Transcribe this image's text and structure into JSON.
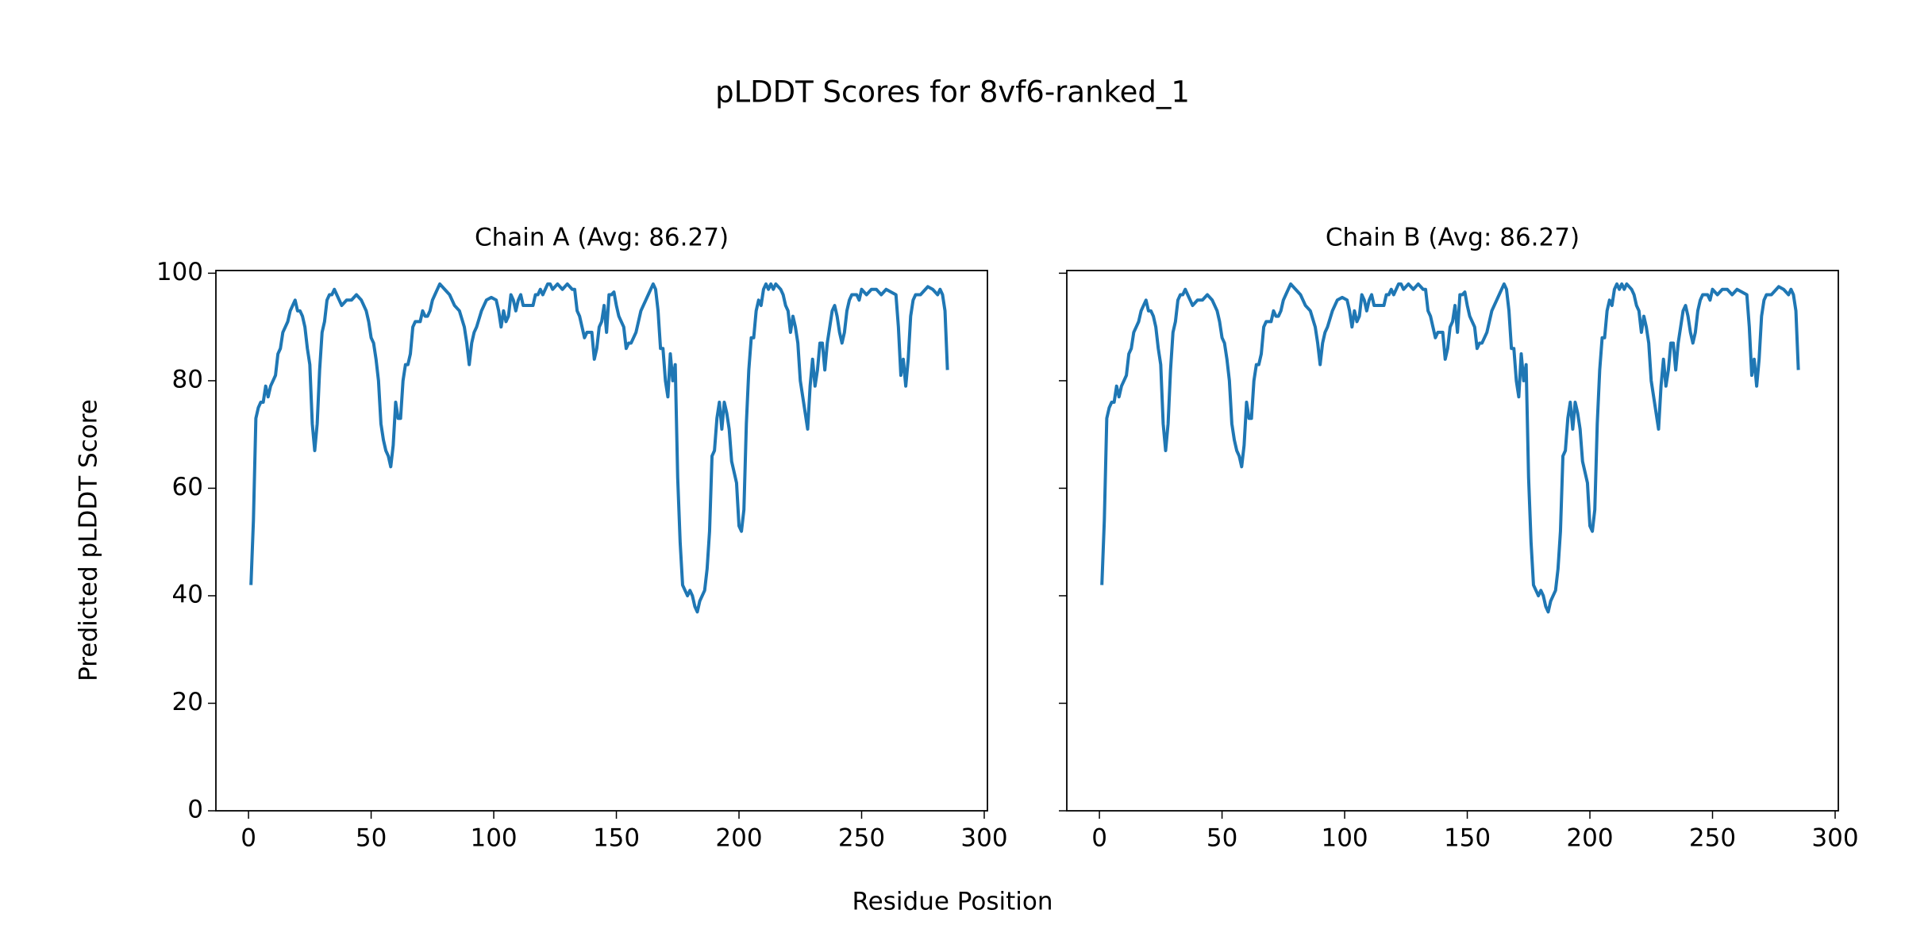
{
  "title": "pLDDT Scores for 8vf6-ranked_1",
  "xlabel": "Residue Position",
  "ylabel": "Predicted pLDDT Score",
  "chart_data": [
    {
      "type": "line",
      "title": "Chain A (Avg: 86.27)",
      "color": "#1f77b4",
      "x": [
        1,
        2,
        3,
        4,
        5,
        6,
        7,
        8,
        9,
        10,
        11,
        12,
        13,
        14,
        15,
        16,
        17,
        18,
        19,
        20,
        21,
        22,
        23,
        24,
        25,
        26,
        27,
        28,
        29,
        30,
        31,
        32,
        33,
        34,
        35,
        36,
        37,
        38,
        39,
        40,
        42,
        44,
        46,
        48,
        49,
        50,
        51,
        52,
        53,
        54,
        55,
        56,
        57,
        58,
        59,
        60,
        61,
        62,
        63,
        64,
        65,
        66,
        67,
        68,
        70,
        71,
        72,
        73,
        74,
        75,
        76,
        77,
        78,
        80,
        82,
        84,
        86,
        88,
        89,
        90,
        91,
        92,
        93,
        95,
        97,
        99,
        101,
        102,
        103,
        104,
        105,
        106,
        107,
        108,
        109,
        110,
        111,
        112,
        114,
        116,
        117,
        118,
        119,
        120,
        121,
        122,
        123,
        124,
        126,
        128,
        130,
        132,
        133,
        134,
        135,
        136,
        137,
        138,
        140,
        141,
        142,
        143,
        144,
        145,
        146,
        147,
        148,
        149,
        150,
        151,
        152,
        153,
        154,
        155,
        156,
        158,
        160,
        162,
        163,
        164,
        165,
        166,
        167,
        168,
        169,
        170,
        171,
        172,
        173,
        174,
        175,
        176,
        177,
        178,
        179,
        180,
        181,
        182,
        183,
        184,
        186,
        187,
        188,
        189,
        190,
        191,
        192,
        193,
        194,
        195,
        196,
        197,
        198,
        199,
        200,
        201,
        202,
        203,
        204,
        205,
        206,
        207,
        208,
        209,
        210,
        211,
        212,
        213,
        214,
        215,
        216,
        217,
        218,
        219,
        220,
        221,
        222,
        223,
        224,
        225,
        226,
        227,
        228,
        229,
        230,
        231,
        232,
        233,
        234,
        235,
        236,
        237,
        238,
        239,
        240,
        241,
        242,
        243,
        244,
        245,
        246,
        248,
        249,
        250,
        252,
        254,
        256,
        258,
        260,
        262,
        264,
        265,
        266,
        267,
        268,
        269,
        270,
        271,
        272,
        274,
        276,
        277,
        279,
        281,
        282,
        283,
        284,
        285
      ],
      "values": [
        42,
        54,
        73,
        75,
        76,
        76,
        79,
        77,
        79,
        80,
        81,
        85,
        86,
        89,
        90,
        91,
        93,
        94,
        95,
        93,
        93,
        92,
        90,
        86,
        83,
        72,
        67,
        72,
        82,
        89,
        91,
        95,
        96,
        96,
        97,
        96,
        95,
        94,
        94.5,
        95,
        95,
        96,
        95,
        93,
        91,
        88,
        87,
        84,
        80,
        72,
        69,
        67,
        66,
        64,
        68,
        76,
        73,
        73,
        80,
        83,
        83,
        85,
        90,
        91,
        91,
        93,
        92,
        92,
        93,
        95,
        96,
        97,
        98,
        97,
        96,
        94,
        93,
        90,
        87,
        83,
        87,
        89,
        90,
        93,
        95,
        95.5,
        95,
        93,
        90,
        93,
        91,
        92,
        96,
        95,
        93,
        95,
        96,
        94,
        94,
        94,
        96,
        96,
        97,
        96,
        97,
        98,
        98,
        97,
        98,
        97,
        98,
        97,
        97,
        93,
        92,
        90,
        88,
        89,
        89,
        84,
        86,
        90,
        91,
        94,
        89,
        96,
        96,
        96.5,
        94,
        92,
        91,
        90,
        86,
        87,
        87,
        89,
        93,
        95,
        96,
        97,
        98,
        97,
        93,
        86,
        86,
        80,
        77,
        85,
        80,
        83,
        62,
        50,
        42,
        41,
        40,
        41,
        40,
        38,
        37,
        39,
        41,
        45,
        52,
        66,
        67,
        73,
        76,
        71,
        76,
        74,
        71,
        65,
        63,
        61,
        53,
        52,
        56,
        72,
        82,
        88,
        88,
        93,
        95,
        94,
        97,
        98,
        97,
        98,
        97,
        98,
        97.5,
        97,
        96,
        94,
        93,
        89,
        92,
        90,
        87,
        80,
        77,
        74,
        71,
        79,
        84,
        79,
        82,
        87,
        87,
        82,
        87,
        90,
        93,
        94,
        92,
        89,
        87,
        89,
        93,
        95,
        96,
        96,
        95,
        97,
        96,
        97,
        97,
        96,
        97,
        96.5,
        96,
        90,
        81,
        84,
        79,
        84,
        92,
        95,
        96,
        96,
        97,
        97.5,
        97,
        96,
        97,
        96,
        93,
        82
      ],
      "xlim": [
        -13.3,
        301.3
      ],
      "ylim": [
        0,
        100.5
      ],
      "xticks": [
        0,
        50,
        100,
        150,
        200,
        250,
        300
      ],
      "yticks": [
        0,
        20,
        40,
        60,
        80,
        100
      ],
      "ytick_labels": true
    },
    {
      "type": "line",
      "title": "Chain B (Avg: 86.27)",
      "color": "#1f77b4",
      "x": [
        1,
        2,
        3,
        4,
        5,
        6,
        7,
        8,
        9,
        10,
        11,
        12,
        13,
        14,
        15,
        16,
        17,
        18,
        19,
        20,
        21,
        22,
        23,
        24,
        25,
        26,
        27,
        28,
        29,
        30,
        31,
        32,
        33,
        34,
        35,
        36,
        37,
        38,
        39,
        40,
        42,
        44,
        46,
        48,
        49,
        50,
        51,
        52,
        53,
        54,
        55,
        56,
        57,
        58,
        59,
        60,
        61,
        62,
        63,
        64,
        65,
        66,
        67,
        68,
        70,
        71,
        72,
        73,
        74,
        75,
        76,
        77,
        78,
        80,
        82,
        84,
        86,
        88,
        89,
        90,
        91,
        92,
        93,
        95,
        97,
        99,
        101,
        102,
        103,
        104,
        105,
        106,
        107,
        108,
        109,
        110,
        111,
        112,
        114,
        116,
        117,
        118,
        119,
        120,
        121,
        122,
        123,
        124,
        126,
        128,
        130,
        132,
        133,
        134,
        135,
        136,
        137,
        138,
        140,
        141,
        142,
        143,
        144,
        145,
        146,
        147,
        148,
        149,
        150,
        151,
        152,
        153,
        154,
        155,
        156,
        158,
        160,
        162,
        163,
        164,
        165,
        166,
        167,
        168,
        169,
        170,
        171,
        172,
        173,
        174,
        175,
        176,
        177,
        178,
        179,
        180,
        181,
        182,
        183,
        184,
        186,
        187,
        188,
        189,
        190,
        191,
        192,
        193,
        194,
        195,
        196,
        197,
        198,
        199,
        200,
        201,
        202,
        203,
        204,
        205,
        206,
        207,
        208,
        209,
        210,
        211,
        212,
        213,
        214,
        215,
        216,
        217,
        218,
        219,
        220,
        221,
        222,
        223,
        224,
        225,
        226,
        227,
        228,
        229,
        230,
        231,
        232,
        233,
        234,
        235,
        236,
        237,
        238,
        239,
        240,
        241,
        242,
        243,
        244,
        245,
        246,
        248,
        249,
        250,
        252,
        254,
        256,
        258,
        260,
        262,
        264,
        265,
        266,
        267,
        268,
        269,
        270,
        271,
        272,
        274,
        276,
        277,
        279,
        281,
        282,
        283,
        284,
        285
      ],
      "values": [
        42,
        54,
        73,
        75,
        76,
        76,
        79,
        77,
        79,
        80,
        81,
        85,
        86,
        89,
        90,
        91,
        93,
        94,
        95,
        93,
        93,
        92,
        90,
        86,
        83,
        72,
        67,
        72,
        82,
        89,
        91,
        95,
        96,
        96,
        97,
        96,
        95,
        94,
        94.5,
        95,
        95,
        96,
        95,
        93,
        91,
        88,
        87,
        84,
        80,
        72,
        69,
        67,
        66,
        64,
        68,
        76,
        73,
        73,
        80,
        83,
        83,
        85,
        90,
        91,
        91,
        93,
        92,
        92,
        93,
        95,
        96,
        97,
        98,
        97,
        96,
        94,
        93,
        90,
        87,
        83,
        87,
        89,
        90,
        93,
        95,
        95.5,
        95,
        93,
        90,
        93,
        91,
        92,
        96,
        95,
        93,
        95,
        96,
        94,
        94,
        94,
        96,
        96,
        97,
        96,
        97,
        98,
        98,
        97,
        98,
        97,
        98,
        97,
        97,
        93,
        92,
        90,
        88,
        89,
        89,
        84,
        86,
        90,
        91,
        94,
        89,
        96,
        96,
        96.5,
        94,
        92,
        91,
        90,
        86,
        87,
        87,
        89,
        93,
        95,
        96,
        97,
        98,
        97,
        93,
        86,
        86,
        80,
        77,
        85,
        80,
        83,
        62,
        50,
        42,
        41,
        40,
        41,
        40,
        38,
        37,
        39,
        41,
        45,
        52,
        66,
        67,
        73,
        76,
        71,
        76,
        74,
        71,
        65,
        63,
        61,
        53,
        52,
        56,
        72,
        82,
        88,
        88,
        93,
        95,
        94,
        97,
        98,
        97,
        98,
        97,
        98,
        97.5,
        97,
        96,
        94,
        93,
        89,
        92,
        90,
        87,
        80,
        77,
        74,
        71,
        79,
        84,
        79,
        82,
        87,
        87,
        82,
        87,
        90,
        93,
        94,
        92,
        89,
        87,
        89,
        93,
        95,
        96,
        96,
        95,
        97,
        96,
        97,
        97,
        96,
        97,
        96.5,
        96,
        90,
        81,
        84,
        79,
        84,
        92,
        95,
        96,
        96,
        97,
        97.5,
        97,
        96,
        97,
        96,
        93,
        82
      ],
      "xlim": [
        -13.3,
        301.3
      ],
      "ylim": [
        0,
        100.5
      ],
      "xticks": [
        0,
        50,
        100,
        150,
        200,
        250,
        300
      ],
      "yticks": [
        0,
        20,
        40,
        60,
        80,
        100
      ],
      "ytick_labels": false
    }
  ]
}
